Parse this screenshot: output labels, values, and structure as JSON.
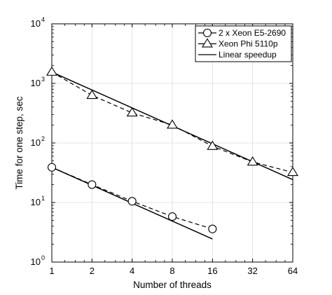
{
  "chart_data": {
    "type": "line",
    "xlabel": "Number of threads",
    "ylabel": "Time for one step, sec",
    "xscale": "log2",
    "yscale": "log10",
    "xlim": [
      1,
      64
    ],
    "ylim": [
      1,
      10000
    ],
    "xticks": [
      1,
      2,
      4,
      8,
      16,
      32,
      64
    ],
    "yticks": [
      {
        "base": "10",
        "exp": "0",
        "value": 1
      },
      {
        "base": "10",
        "exp": "1",
        "value": 10
      },
      {
        "base": "10",
        "exp": "2",
        "value": 100
      },
      {
        "base": "10",
        "exp": "3",
        "value": 1000
      },
      {
        "base": "10",
        "exp": "4",
        "value": 10000
      }
    ],
    "grid": true,
    "legend_position": "top-right",
    "legend": [
      "2 x Xeon E5-2690",
      "Xeon Phi 5110p",
      "Linear speedup"
    ],
    "series": [
      {
        "name": "2 x Xeon E5-2690",
        "marker": "circle",
        "style": "dashed",
        "x": [
          1,
          2,
          4,
          8,
          16
        ],
        "y": [
          39,
          20,
          10.5,
          5.8,
          3.6
        ]
      },
      {
        "name": "Xeon Phi 5110p",
        "marker": "triangle",
        "style": "dashed",
        "x": [
          1,
          2,
          4,
          8,
          16,
          32,
          64
        ],
        "y": [
          1550,
          630,
          320,
          200,
          88,
          48,
          32
        ]
      }
    ],
    "linear_speedup": [
      {
        "x": [
          1,
          16
        ],
        "y": [
          39,
          2.44
        ]
      },
      {
        "x": [
          1,
          64
        ],
        "y": [
          1550,
          24.2
        ]
      }
    ]
  }
}
